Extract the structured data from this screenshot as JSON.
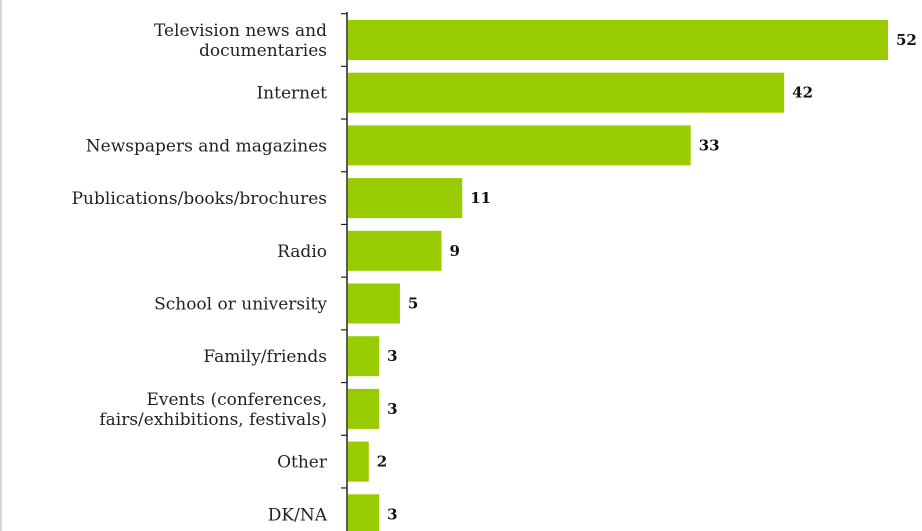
{
  "chart_data": {
    "type": "bar",
    "orientation": "horizontal",
    "categories": [
      [
        "Television news and",
        "documentaries"
      ],
      [
        "Internet"
      ],
      [
        "Newspapers and magazines"
      ],
      [
        "Publications/books/brochures"
      ],
      [
        "Radio"
      ],
      [
        "School or university"
      ],
      [
        "Family/friends"
      ],
      [
        "Events (conferences,",
        "fairs/exhibitions, festivals)"
      ],
      [
        "Other"
      ],
      [
        "DK/NA"
      ]
    ],
    "values": [
      52,
      42,
      33,
      11,
      9,
      5,
      3,
      3,
      2,
      3
    ],
    "value_labels": [
      "52",
      "42",
      "33",
      "11",
      "9",
      "5",
      "3",
      "3",
      "2",
      "3"
    ],
    "title": "",
    "xlabel": "",
    "ylabel": "",
    "xlim": [
      0,
      52
    ],
    "grid": false,
    "colors": {
      "bar": "#99cc00",
      "axis": "#222222",
      "text": "#222222"
    }
  }
}
